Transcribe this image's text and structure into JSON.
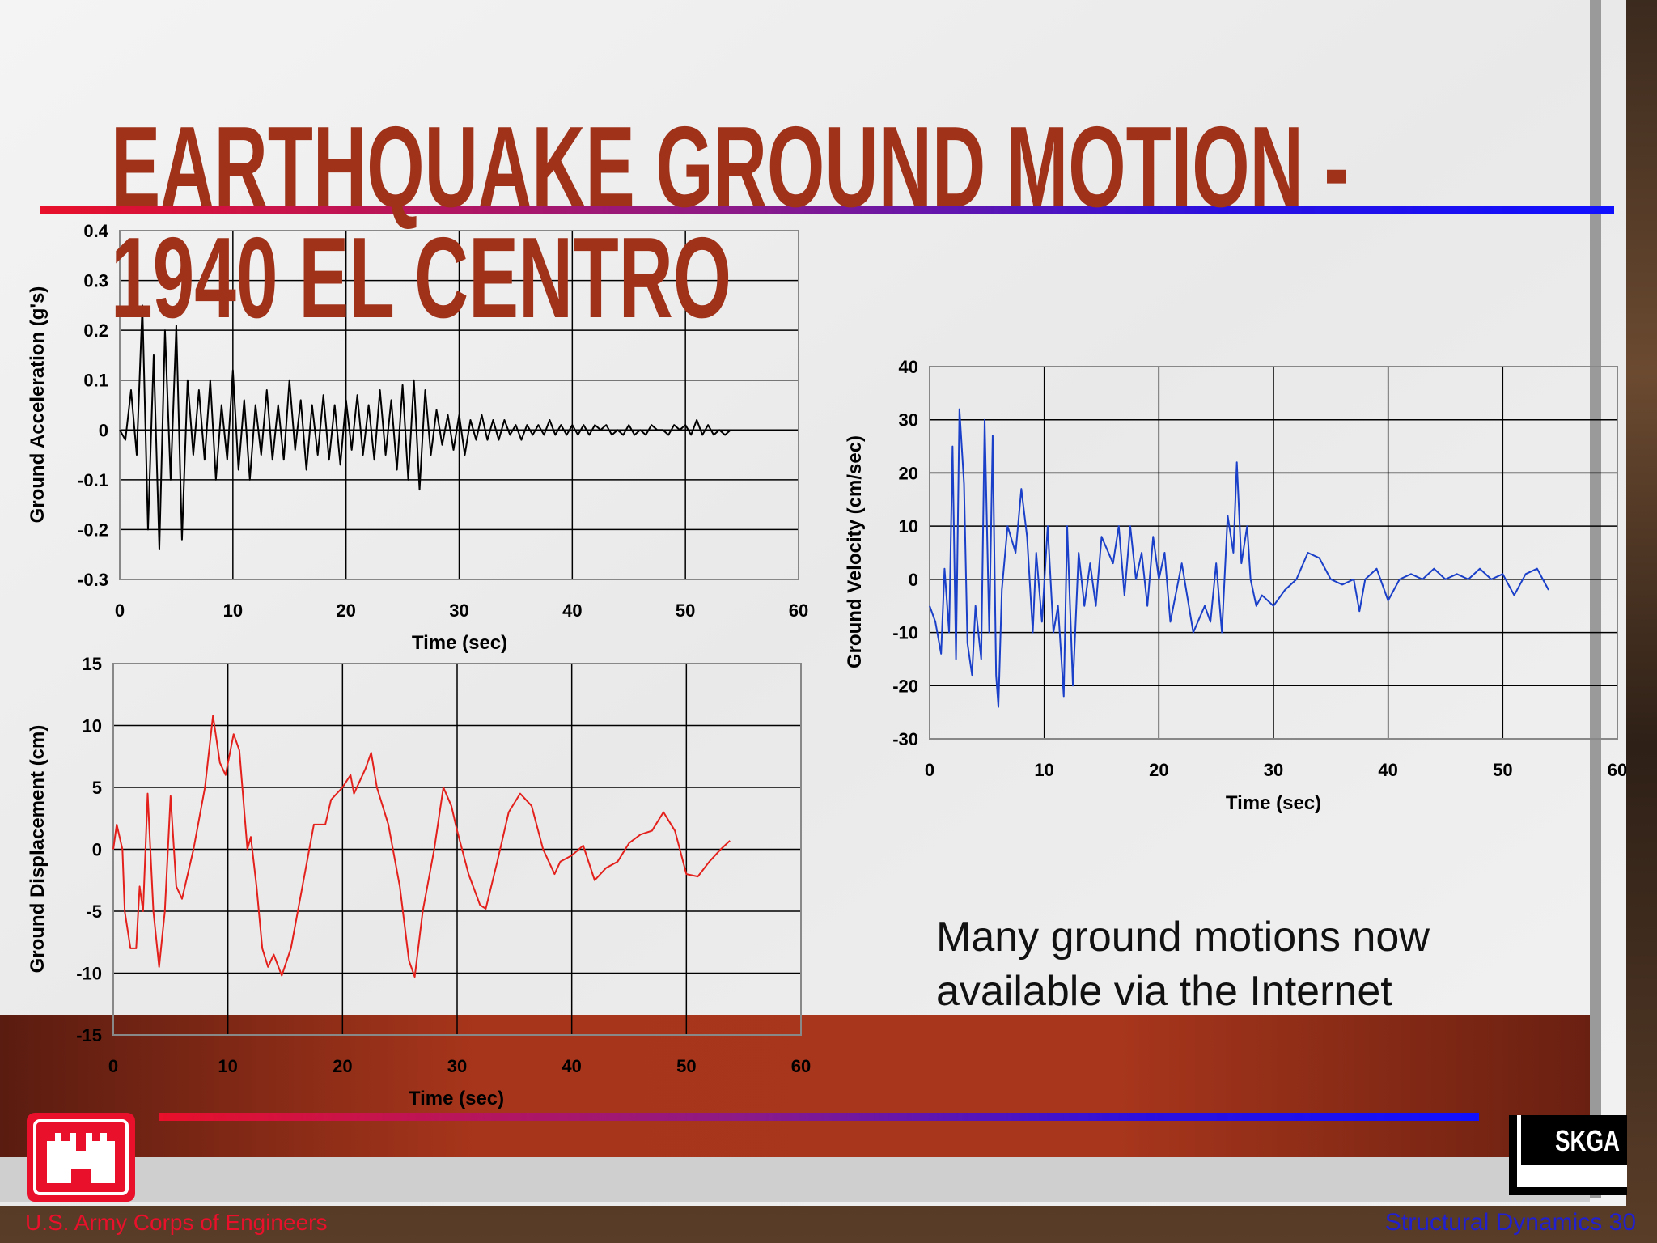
{
  "slide": {
    "title": [
      "EARTHQUAKE GROUND MOTION -",
      "1940 EL CENTRO"
    ],
    "body": [
      "Many ground motions now",
      "available via the Internet"
    ],
    "footer_left": "U.S. Army Corps of Engineers",
    "footer_right": "Structural Dynamics 30",
    "logo_text": "SKGA"
  },
  "chart_data": [
    {
      "type": "line",
      "x_label": "Time (sec)",
      "y_label": "Ground Acceleration (g's)",
      "grid": true,
      "xlim": [
        0,
        60
      ],
      "xticks": [
        0,
        10,
        20,
        30,
        40,
        50,
        60
      ],
      "ylim": [
        -0.3,
        0.4
      ],
      "yticks": [
        -0.3,
        -0.2,
        -0.1,
        0,
        0.1,
        0.2,
        0.3,
        0.4
      ],
      "x": [
        0,
        0.5,
        1,
        1.5,
        2,
        2.5,
        3,
        3.5,
        4,
        4.5,
        5,
        5.5,
        6,
        6.5,
        7,
        7.5,
        8,
        8.5,
        9,
        9.5,
        10,
        10.5,
        11,
        11.5,
        12,
        12.5,
        13,
        13.5,
        14,
        14.5,
        15,
        15.5,
        16,
        16.5,
        17,
        17.5,
        18,
        18.5,
        19,
        19.5,
        20,
        20.5,
        21,
        21.5,
        22,
        22.5,
        23,
        23.5,
        24,
        24.5,
        25,
        25.5,
        26,
        26.5,
        27,
        27.5,
        28,
        28.5,
        29,
        29.5,
        30,
        30.5,
        31,
        31.5,
        32,
        32.5,
        33,
        33.5,
        34,
        34.5,
        35,
        35.5,
        36,
        36.5,
        37,
        37.5,
        38,
        38.5,
        39,
        39.5,
        40,
        40.5,
        41,
        41.5,
        42,
        42.5,
        43,
        43.5,
        44,
        44.5,
        45,
        45.5,
        46,
        46.5,
        47,
        47.5,
        48,
        48.5,
        49,
        49.5,
        50,
        50.5,
        51,
        51.5,
        52,
        52.5,
        53,
        53.5,
        54
      ],
      "series": [
        {
          "name": "Ground Acceleration",
          "color": "#000000",
          "values": [
            0,
            -0.02,
            0.08,
            -0.05,
            0.25,
            -0.2,
            0.15,
            -0.24,
            0.2,
            -0.1,
            0.21,
            -0.22,
            0.1,
            -0.05,
            0.08,
            -0.06,
            0.1,
            -0.1,
            0.05,
            -0.06,
            0.12,
            -0.08,
            0.06,
            -0.1,
            0.05,
            -0.05,
            0.08,
            -0.06,
            0.05,
            -0.06,
            0.1,
            -0.04,
            0.06,
            -0.08,
            0.05,
            -0.05,
            0.07,
            -0.06,
            0.05,
            -0.07,
            0.06,
            -0.04,
            0.07,
            -0.05,
            0.05,
            -0.06,
            0.08,
            -0.05,
            0.06,
            -0.08,
            0.09,
            -0.1,
            0.1,
            -0.12,
            0.08,
            -0.05,
            0.04,
            -0.03,
            0.03,
            -0.04,
            0.03,
            -0.05,
            0.02,
            -0.02,
            0.03,
            -0.02,
            0.02,
            -0.02,
            0.02,
            -0.01,
            0.01,
            -0.02,
            0.01,
            -0.01,
            0.01,
            -0.01,
            0.02,
            -0.01,
            0.01,
            -0.01,
            0.01,
            -0.01,
            0.01,
            -0.01,
            0.01,
            0,
            0.01,
            -0.01,
            0,
            -0.01,
            0.01,
            -0.01,
            0,
            -0.01,
            0.01,
            0,
            0,
            -0.01,
            0.01,
            0,
            0.01,
            -0.01,
            0.02,
            -0.01,
            0.01,
            -0.01,
            0,
            -0.01,
            0
          ]
        }
      ]
    },
    {
      "type": "line",
      "x_label": "Time (sec)",
      "y_label": "Ground Displacement (cm)",
      "grid": true,
      "xlim": [
        0,
        60
      ],
      "xticks": [
        0,
        10,
        20,
        30,
        40,
        50,
        60
      ],
      "ylim": [
        -15,
        15
      ],
      "yticks": [
        -15,
        -10,
        -5,
        0,
        5,
        10,
        15
      ],
      "x": [
        0,
        0.3,
        0.8,
        1,
        1.5,
        2,
        2.3,
        2.6,
        3,
        3.5,
        4,
        4.5,
        5,
        5.5,
        6,
        7,
        8,
        8.7,
        9.3,
        9.8,
        10.5,
        11,
        11.7,
        12,
        12.5,
        13,
        13.5,
        14,
        14.7,
        15.5,
        16.5,
        17.5,
        18.5,
        19,
        20,
        20.7,
        21,
        22,
        22.5,
        23,
        24,
        25,
        25.8,
        26.3,
        27,
        28,
        28.8,
        29.5,
        30,
        31,
        32,
        32.5,
        33.5,
        34.5,
        35.5,
        36.5,
        37.5,
        38.5,
        39,
        40,
        41,
        42,
        43,
        44,
        45,
        46,
        47,
        48,
        49,
        50,
        51,
        52,
        53,
        53.8
      ],
      "series": [
        {
          "name": "Ground Displacement",
          "color": "#e3201b",
          "values": [
            0,
            2,
            0,
            -5,
            -8,
            -8,
            -3,
            -5,
            4.5,
            -5,
            -9.5,
            -5,
            4.3,
            -3,
            -4,
            0,
            5,
            10.8,
            7,
            6,
            9.3,
            8,
            0,
            1,
            -3,
            -8,
            -9.5,
            -8.5,
            -10.2,
            -8,
            -3,
            2,
            2,
            4,
            5,
            6,
            4.5,
            6.5,
            7.8,
            5,
            2,
            -3,
            -9,
            -10.3,
            -5,
            0,
            5,
            3.5,
            1.5,
            -2,
            -4.5,
            -4.8,
            -1,
            3,
            4.5,
            3.5,
            0,
            -2,
            -1,
            -0.5,
            0.3,
            -2.5,
            -1.5,
            -1,
            0.5,
            1.2,
            1.5,
            3,
            1.5,
            -2,
            -2.2,
            -1,
            0,
            0.7
          ]
        }
      ]
    },
    {
      "type": "line",
      "x_label": "Time (sec)",
      "y_label": "Ground Velocity (cm/sec)",
      "grid": true,
      "xlim": [
        0,
        60
      ],
      "xticks": [
        0,
        10,
        20,
        30,
        40,
        50,
        60
      ],
      "ylim": [
        -30,
        40
      ],
      "yticks": [
        -30,
        -20,
        -10,
        0,
        10,
        20,
        30,
        40
      ],
      "x": [
        0,
        0.5,
        1,
        1.3,
        1.7,
        2,
        2.3,
        2.6,
        3,
        3.3,
        3.7,
        4,
        4.5,
        4.8,
        5.2,
        5.5,
        5.8,
        6,
        6.3,
        6.8,
        7.5,
        8,
        8.5,
        9,
        9.3,
        9.8,
        10.3,
        10.8,
        11.2,
        11.7,
        12,
        12.5,
        13,
        13.5,
        14,
        14.5,
        15,
        16,
        16.5,
        17,
        17.5,
        18,
        18.5,
        19,
        19.5,
        20,
        20.5,
        21,
        22,
        23,
        24,
        24.5,
        25,
        25.5,
        26,
        26.5,
        26.8,
        27.2,
        27.7,
        28,
        28.5,
        29,
        30,
        31,
        32,
        33,
        34,
        35,
        36,
        37,
        37.5,
        38,
        39,
        40,
        41,
        42,
        43,
        44,
        45,
        46,
        47,
        48,
        49,
        50,
        51,
        52,
        53,
        53.5,
        54
      ],
      "series": [
        {
          "name": "Ground Velocity",
          "color": "#1a3fc8",
          "values": [
            -5,
            -8,
            -14,
            2,
            -10,
            25,
            -15,
            32,
            18,
            -12,
            -18,
            -5,
            -15,
            30,
            -10,
            27,
            -18,
            -24,
            -2,
            10,
            5,
            17,
            8,
            -10,
            5,
            -8,
            10,
            -10,
            -5,
            -22,
            10,
            -20,
            5,
            -5,
            3,
            -5,
            8,
            3,
            10,
            -3,
            10,
            0,
            5,
            -5,
            8,
            0,
            5,
            -8,
            3,
            -10,
            -5,
            -8,
            3,
            -10,
            12,
            5,
            22,
            3,
            10,
            0,
            -5,
            -3,
            -5,
            -2,
            0,
            5,
            4,
            0,
            -1,
            0,
            -6,
            0,
            2,
            -4,
            0,
            1,
            0,
            2,
            0,
            1,
            0,
            2,
            0,
            1,
            -3,
            1,
            2,
            0,
            -2
          ]
        }
      ]
    }
  ]
}
